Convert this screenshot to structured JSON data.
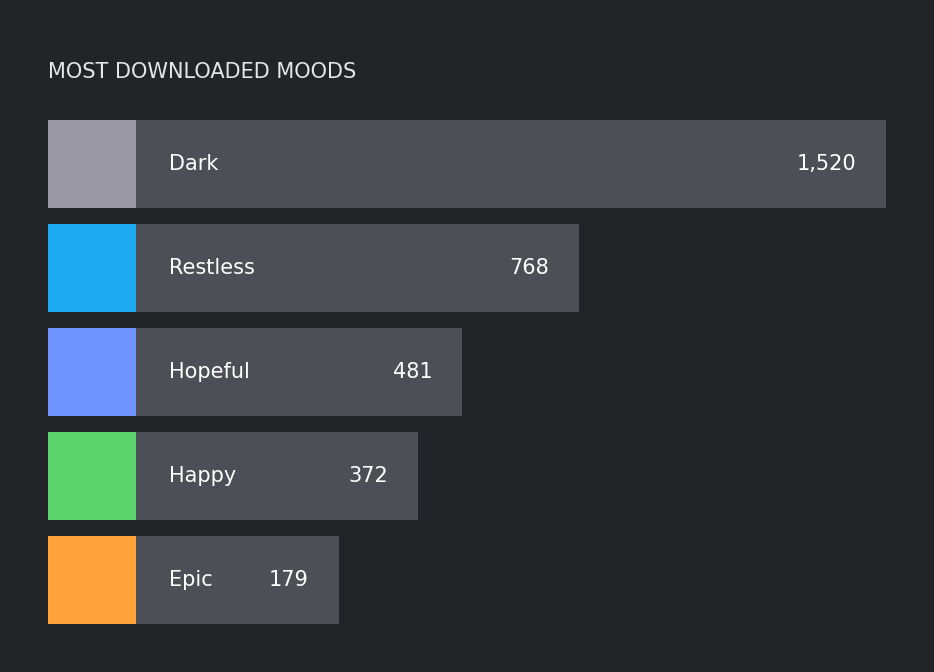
{
  "chart_data": {
    "type": "bar",
    "orientation": "horizontal",
    "title": "MOST DOWNLOADED MOODS",
    "categories": [
      "Dark",
      "Restless",
      "Hopeful",
      "Happy",
      "Epic"
    ],
    "values": [
      1520,
      768,
      481,
      372,
      179
    ],
    "value_labels": [
      "1,520",
      "768",
      "481",
      "372",
      "179"
    ],
    "data_labels": true,
    "color": "#4c4f56",
    "colors": [
      "#9b98a6",
      "#1eaaf1",
      "#6e93ff",
      "#5bd36a",
      "#ffa23a"
    ],
    "xlim": [
      0,
      1520
    ],
    "tick_labels": false,
    "grid": false
  }
}
